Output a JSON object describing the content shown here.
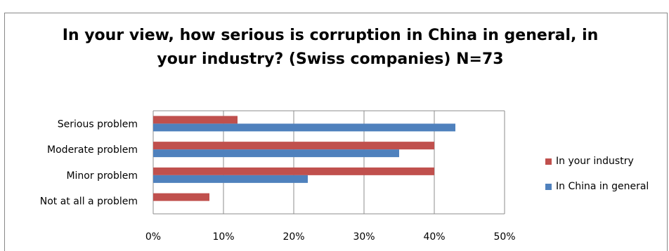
{
  "chart_data": {
    "type": "bar",
    "orientation": "horizontal",
    "title": "In your view, how serious is corruption in China in general, in your industry? (Swiss companies) N=73",
    "title_line1": "In your view, how serious is corruption in China in general, in",
    "title_line2": "your industry? (Swiss companies) N=73",
    "categories": [
      "Serious problem",
      "Moderate problem",
      "Minor problem",
      "Not at all a problem"
    ],
    "series": [
      {
        "name": "In your industry",
        "color": "#c0504d",
        "values": [
          12,
          40,
          40,
          8
        ]
      },
      {
        "name": "In China in general",
        "color": "#4f81bd",
        "values": [
          43,
          35,
          22,
          0
        ]
      }
    ],
    "x_ticks": [
      "0%",
      "10%",
      "20%",
      "30%",
      "40%",
      "50%"
    ],
    "xlim": [
      0,
      50
    ],
    "grid": true,
    "legend_position": "right"
  },
  "top_fragment": "...pp... ...y,  ...pp... ... ... ... ... ... ... ...p... ... ... ...p... ...p..."
}
